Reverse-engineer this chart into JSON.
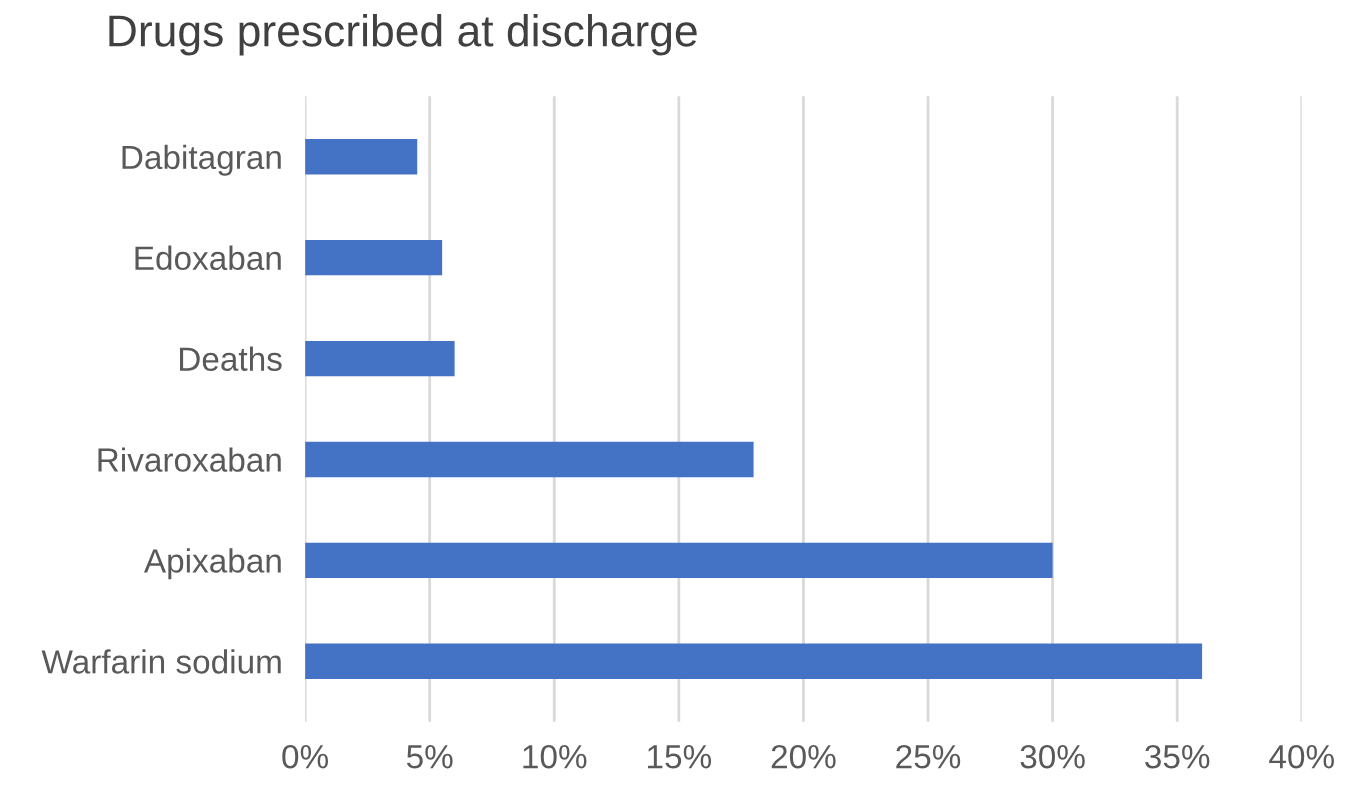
{
  "chart_data": {
    "type": "bar",
    "orientation": "horizontal",
    "title": "Drugs prescribed at discharge",
    "categories": [
      "Dabitagran",
      "Edoxaban",
      "Deaths",
      "Rivaroxaban",
      "Apixaban",
      "Warfarin sodium"
    ],
    "values": [
      4.5,
      5.5,
      6,
      18,
      30,
      36
    ],
    "color": "#4472c4",
    "xlim": [
      0,
      40
    ],
    "xticks": [
      {
        "value": 0,
        "label": "0%"
      },
      {
        "value": 5,
        "label": "5%"
      },
      {
        "value": 10,
        "label": "10%"
      },
      {
        "value": 15,
        "label": "15%"
      },
      {
        "value": 20,
        "label": "20%"
      },
      {
        "value": 25,
        "label": "25%"
      },
      {
        "value": 30,
        "label": "30%"
      },
      {
        "value": 35,
        "label": "35%"
      },
      {
        "value": 40,
        "label": "40%"
      }
    ],
    "grid": "x",
    "legend": false
  }
}
